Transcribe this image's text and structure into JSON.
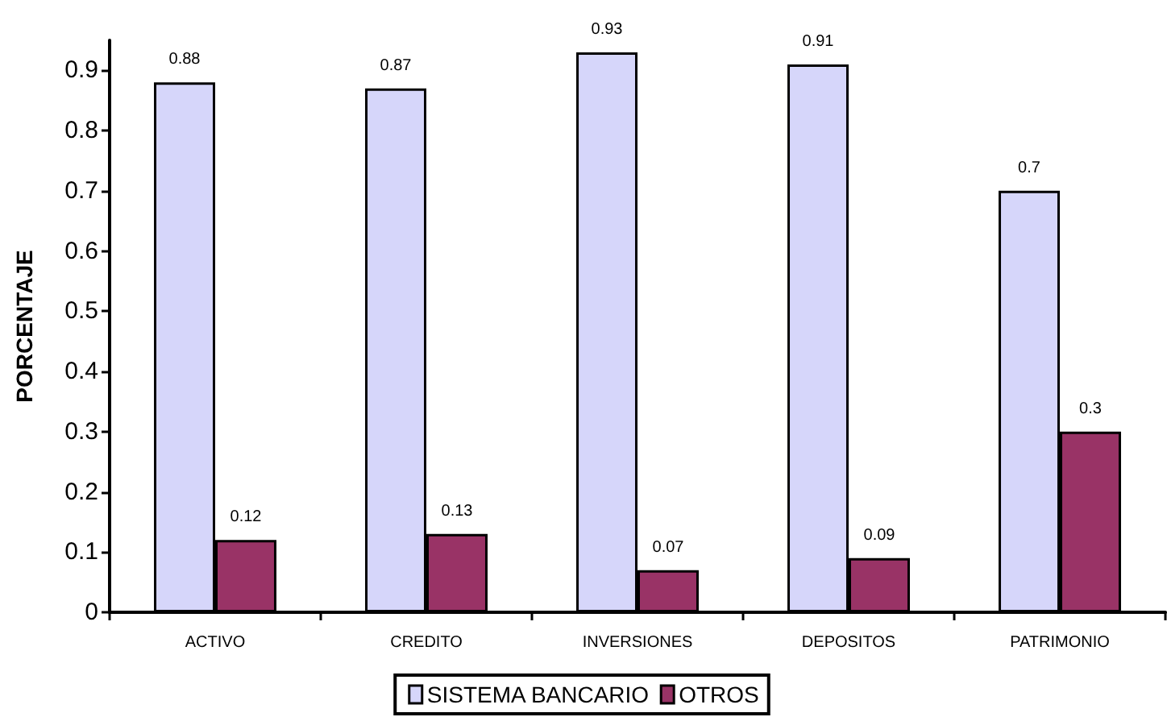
{
  "chart_data": {
    "type": "bar",
    "ylabel": "PORCENTAJE",
    "categories": [
      "ACTIVO",
      "CREDITO",
      "INVERSIONES",
      "DEPOSITOS",
      "PATRIMONIO"
    ],
    "series": [
      {
        "name": "SISTEMA BANCARIO",
        "color": "#d6d6fa",
        "values": [
          0.88,
          0.87,
          0.93,
          0.91,
          0.7
        ]
      },
      {
        "name": "OTROS",
        "color": "#993366",
        "values": [
          0.12,
          0.13,
          0.07,
          0.09,
          0.3
        ]
      }
    ],
    "ylim": [
      0,
      0.95
    ],
    "yticks": [
      0,
      0.1,
      0.2,
      0.3,
      0.4,
      0.5,
      0.6,
      0.7,
      0.8,
      0.9
    ],
    "grid": false,
    "data_labels": true,
    "legend": "bottom"
  }
}
